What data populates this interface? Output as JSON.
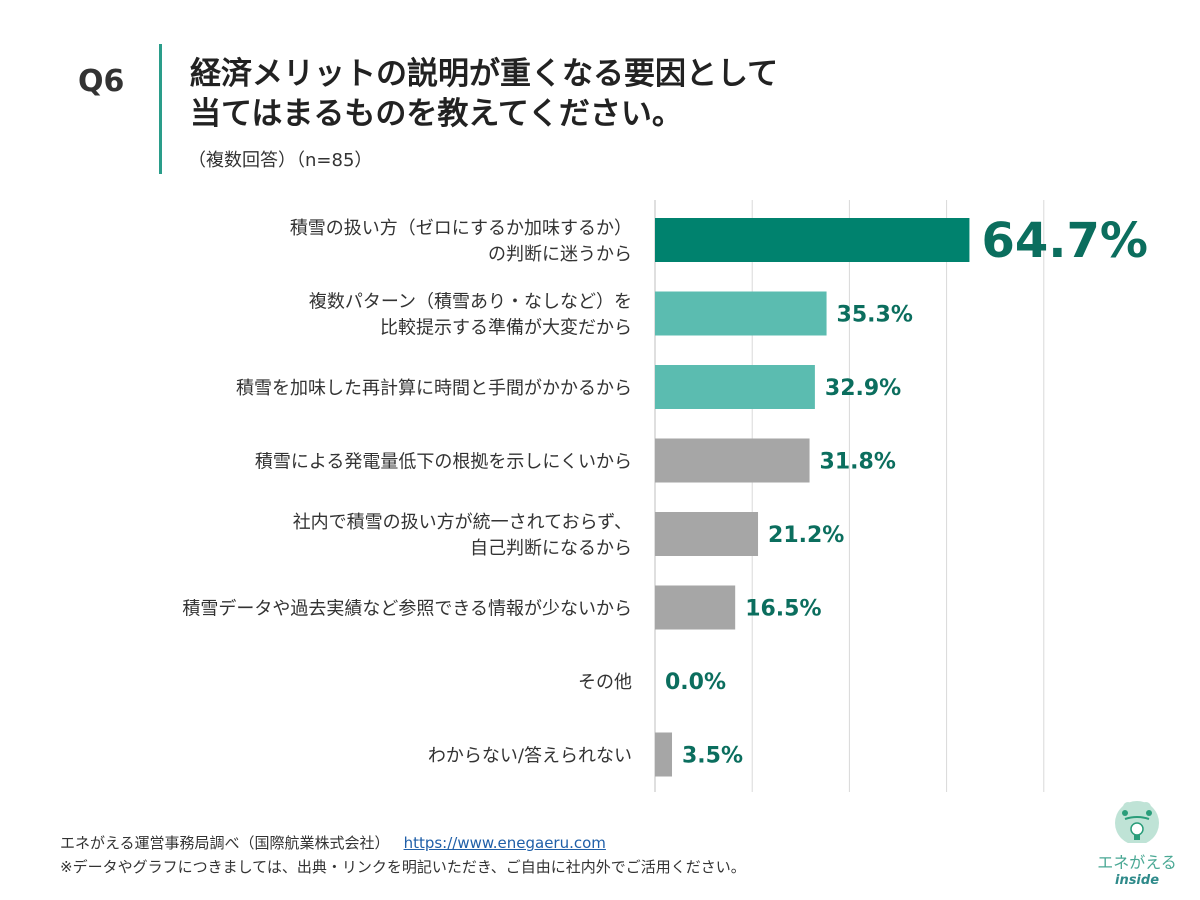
{
  "question_no": "Q6",
  "title_lines": [
    "経済メリットの説明が重くなる要因として",
    "当てはまるものを教えてください。"
  ],
  "subtitle": "（複数回答）（n=85）",
  "chart_data": {
    "type": "bar",
    "orientation": "horizontal",
    "categories": [
      [
        "積雪の扱い方（ゼロにするか加味するか）",
        "の判断に迷うから"
      ],
      [
        "複数パターン（積雪あり・なしなど）を",
        "比較提示する準備が大変だから"
      ],
      [
        "積雪を加味した再計算に時間と手間がかかるから"
      ],
      [
        "積雪による発電量低下の根拠を示しにくいから"
      ],
      [
        "社内で積雪の扱い方が統一されておらず、",
        "自己判断になるから"
      ],
      [
        "積雪データや過去実績など参照できる情報が少ないから"
      ],
      [
        "その他"
      ],
      [
        "わからない/答えられない"
      ]
    ],
    "values": [
      64.7,
      35.3,
      32.9,
      31.8,
      21.2,
      16.5,
      0.0,
      3.5
    ],
    "value_labels": [
      "64.7%",
      "35.3%",
      "32.9%",
      "31.8%",
      "21.2%",
      "16.5%",
      "0.0%",
      "3.5%"
    ],
    "bar_colors": [
      "#00826e",
      "#5bbcb0",
      "#5bbcb0",
      "#a6a6a6",
      "#a6a6a6",
      "#a6a6a6",
      "#a6a6a6",
      "#a6a6a6"
    ],
    "label_color": "#0b6e5e",
    "xlim": [
      0,
      100
    ],
    "grid": true
  },
  "footer": {
    "source": "エネがえる運営事務局調べ（国際航業株式会社）",
    "link": "https://www.enegaeru.com",
    "note": "※データやグラフにつきましては、出典・リンクを明記いただき、ご自由に社内外でご活用ください。"
  },
  "logo": {
    "text": "エネがえる",
    "sub": "inside"
  }
}
